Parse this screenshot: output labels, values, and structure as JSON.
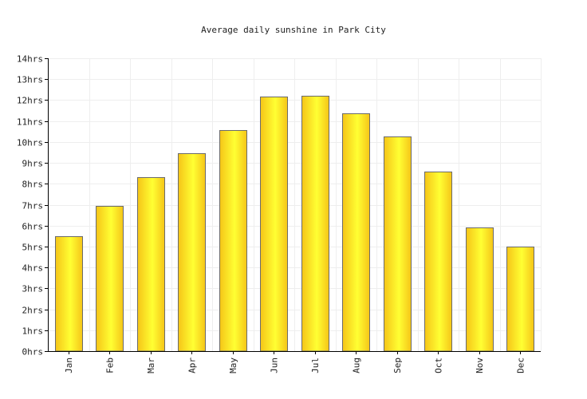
{
  "chart_data": {
    "type": "bar",
    "title": "Average daily sunshine in Park City",
    "xlabel": "",
    "ylabel": "",
    "categories": [
      "Jan",
      "Feb",
      "Mar",
      "Apr",
      "May",
      "Jun",
      "Jul",
      "Aug",
      "Sep",
      "Oct",
      "Nov",
      "Dec"
    ],
    "values": [
      5.5,
      6.95,
      8.3,
      9.45,
      10.55,
      12.15,
      12.2,
      11.35,
      10.25,
      8.6,
      5.9,
      5.0
    ],
    "ylim": [
      0,
      14
    ],
    "yticks": [
      0,
      1,
      2,
      3,
      4,
      5,
      6,
      7,
      8,
      9,
      10,
      11,
      12,
      13,
      14
    ],
    "ytick_labels": [
      "0hrs",
      "1hrs",
      "2hrs",
      "3hrs",
      "4hrs",
      "5hrs",
      "6hrs",
      "7hrs",
      "8hrs",
      "9hrs",
      "10hrs",
      "11hrs",
      "12hrs",
      "13hrs",
      "14hrs"
    ],
    "grid": true,
    "legend": "none",
    "colors": {
      "bar_light": "#ffff33",
      "bar_dark": "#f5c518",
      "bar_stroke": "#6b6b6b",
      "grid": "#eeeeee",
      "axis": "#000000"
    }
  }
}
